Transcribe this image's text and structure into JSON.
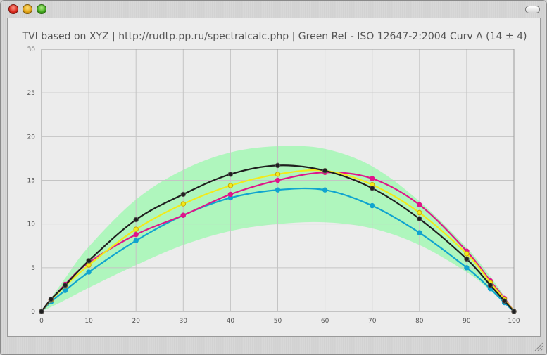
{
  "window": {
    "title": ""
  },
  "chart_data": {
    "type": "line",
    "title": "TVI based on XYZ | http://rudtp.pp.ru/spectralcalc.php | Green Ref - ISO 12647-2:2004 Curv A (14 ± 4)",
    "xlabel": "",
    "ylabel": "",
    "xlim": [
      0,
      100
    ],
    "ylim": [
      0,
      30
    ],
    "x_ticks": [
      0,
      10,
      20,
      30,
      40,
      50,
      60,
      70,
      80,
      90,
      100
    ],
    "y_ticks": [
      0,
      5,
      10,
      15,
      20,
      25,
      30
    ],
    "grid": true,
    "colors": {
      "band": "#a8f7b8",
      "black": "#1f1f1f",
      "magenta": "#e0158a",
      "yellow": "#f2ea1a",
      "cyan": "#10a4cf"
    },
    "band": {
      "name": "",
      "x": [
        0,
        2,
        5,
        10,
        20,
        30,
        40,
        50,
        60,
        70,
        80,
        90,
        95,
        98,
        100
      ],
      "lower": [
        0,
        0.5,
        1.3,
        2.7,
        5.3,
        7.6,
        9.2,
        10.0,
        10.2,
        9.5,
        7.6,
        4.5,
        2.4,
        0.9,
        0
      ],
      "upper": [
        0,
        1.5,
        3.8,
        7.4,
        12.8,
        16.2,
        18.2,
        18.9,
        18.6,
        16.6,
        12.6,
        7.3,
        4.0,
        1.7,
        0
      ]
    },
    "x": [
      0,
      2,
      5,
      10,
      20,
      30,
      40,
      50,
      60,
      70,
      80,
      90,
      95,
      98,
      100
    ],
    "series": [
      {
        "name": "",
        "color_key": "cyan",
        "values": [
          0,
          1.1,
          2.4,
          4.5,
          8.1,
          11.0,
          13.0,
          13.9,
          13.9,
          12.1,
          9.0,
          5.0,
          2.6,
          1.0,
          0
        ]
      },
      {
        "name": "",
        "color_key": "magenta",
        "values": [
          0,
          1.3,
          3.1,
          5.6,
          8.8,
          11.0,
          13.4,
          15.0,
          15.9,
          15.2,
          12.2,
          6.9,
          3.5,
          1.5,
          0
        ]
      },
      {
        "name": "",
        "color_key": "yellow",
        "values": [
          0,
          1.3,
          2.9,
          5.3,
          9.4,
          12.3,
          14.4,
          15.7,
          16.1,
          14.5,
          11.3,
          6.6,
          3.3,
          1.4,
          0
        ]
      },
      {
        "name": "",
        "color_key": "black",
        "values": [
          0,
          1.4,
          3.0,
          5.8,
          10.5,
          13.4,
          15.7,
          16.7,
          16.1,
          14.1,
          10.6,
          6.0,
          3.0,
          1.2,
          0
        ]
      }
    ]
  }
}
